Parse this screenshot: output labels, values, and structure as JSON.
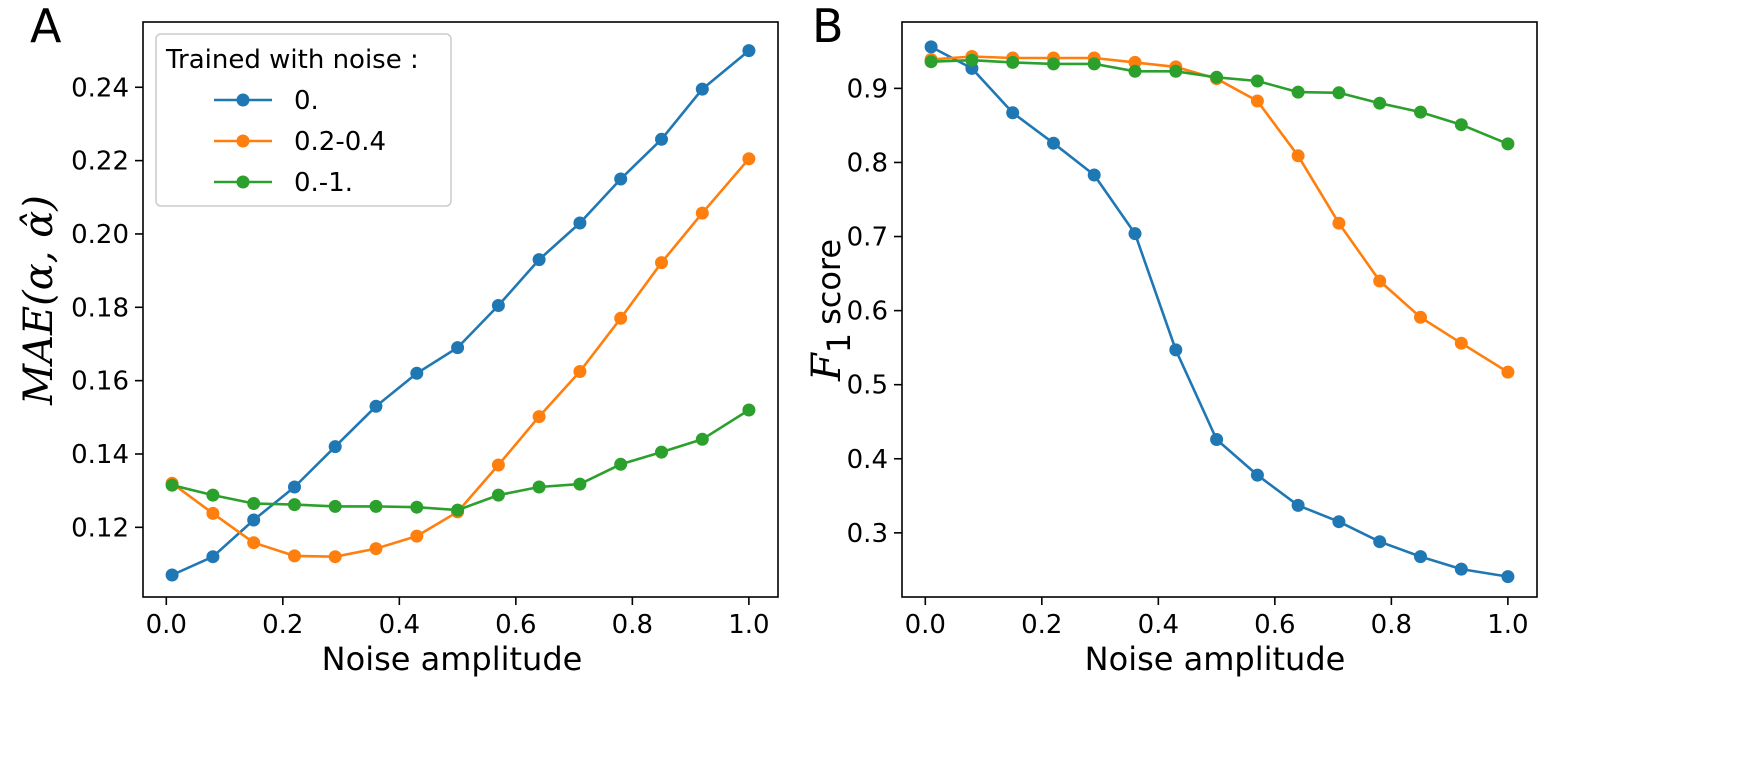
{
  "chart_data": [
    {
      "type": "line",
      "panel": "A",
      "xlabel": "Noise amplitude",
      "ylabel": "MAE(α, α̂)",
      "xlim": [
        -0.04,
        1.05
      ],
      "ylim": [
        0.101,
        0.2578
      ],
      "xticks": [
        0.0,
        0.2,
        0.4,
        0.6,
        0.8,
        1.0
      ],
      "xtick_labels": [
        "0.0",
        "0.2",
        "0.4",
        "0.6",
        "0.8",
        "1.0"
      ],
      "yticks": [
        0.12,
        0.14,
        0.16,
        0.18,
        0.2,
        0.22,
        0.24
      ],
      "ytick_labels": [
        "0.12",
        "0.14",
        "0.16",
        "0.18",
        "0.20",
        "0.22",
        "0.24"
      ],
      "x": [
        0.01,
        0.08,
        0.15,
        0.22,
        0.29,
        0.36,
        0.43,
        0.5,
        0.57,
        0.64,
        0.71,
        0.78,
        0.85,
        0.92,
        1.0
      ],
      "legend": {
        "title": "Trained with noise :",
        "placement": "upper-left"
      },
      "series": [
        {
          "name": "0.",
          "color": "#1f77b4",
          "values": [
            0.107,
            0.112,
            0.122,
            0.131,
            0.142,
            0.153,
            0.162,
            0.169,
            0.1805,
            0.193,
            0.203,
            0.215,
            0.2258,
            0.2395,
            0.25
          ]
        },
        {
          "name": "0.2-0.4",
          "color": "#ff7f0e",
          "values": [
            0.132,
            0.1238,
            0.1158,
            0.1122,
            0.112,
            0.1142,
            0.1176,
            0.1242,
            0.137,
            0.1502,
            0.1625,
            0.177,
            0.1922,
            0.2057,
            0.2205
          ]
        },
        {
          "name": "0.-1.",
          "color": "#2ca02c",
          "values": [
            0.1315,
            0.1288,
            0.1265,
            0.1262,
            0.1257,
            0.1257,
            0.1255,
            0.1247,
            0.1288,
            0.131,
            0.1318,
            0.1372,
            0.1405,
            0.144,
            0.152
          ]
        }
      ]
    },
    {
      "type": "line",
      "panel": "B",
      "xlabel": "Noise amplitude",
      "ylabel_math": "F",
      "ylabel_sub": "1",
      "ylabel_text": "score",
      "xlim": [
        -0.04,
        1.05
      ],
      "ylim": [
        0.2134,
        0.9896
      ],
      "xticks": [
        0.0,
        0.2,
        0.4,
        0.6,
        0.8,
        1.0
      ],
      "xtick_labels": [
        "0.0",
        "0.2",
        "0.4",
        "0.6",
        "0.8",
        "1.0"
      ],
      "yticks": [
        0.3,
        0.4,
        0.5,
        0.6,
        0.7,
        0.8,
        0.9
      ],
      "ytick_labels": [
        "0.3",
        "0.4",
        "0.5",
        "0.6",
        "0.7",
        "0.8",
        "0.9"
      ],
      "x": [
        0.01,
        0.08,
        0.15,
        0.22,
        0.29,
        0.36,
        0.43,
        0.5,
        0.57,
        0.64,
        0.71,
        0.78,
        0.85,
        0.92,
        1.0
      ],
      "series": [
        {
          "name": "0.",
          "color": "#1f77b4",
          "values": [
            0.956,
            0.927,
            0.867,
            0.826,
            0.783,
            0.704,
            0.547,
            0.426,
            0.378,
            0.337,
            0.315,
            0.288,
            0.268,
            0.251,
            0.241
          ]
        },
        {
          "name": "0.2-0.4",
          "color": "#ff7f0e",
          "values": [
            0.939,
            0.943,
            0.941,
            0.941,
            0.941,
            0.935,
            0.929,
            0.913,
            0.883,
            0.809,
            0.718,
            0.64,
            0.591,
            0.556,
            0.517
          ]
        },
        {
          "name": "0.-1.",
          "color": "#2ca02c",
          "values": [
            0.936,
            0.938,
            0.935,
            0.933,
            0.933,
            0.923,
            0.923,
            0.915,
            0.91,
            0.895,
            0.894,
            0.88,
            0.868,
            0.851,
            0.825
          ]
        }
      ]
    }
  ]
}
